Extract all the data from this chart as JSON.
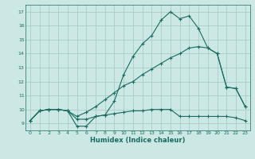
{
  "xlabel": "Humidex (Indice chaleur)",
  "ylabel": "",
  "xlim": [
    -0.5,
    23.5
  ],
  "ylim": [
    8.5,
    17.5
  ],
  "xticks": [
    0,
    1,
    2,
    3,
    4,
    5,
    6,
    7,
    8,
    9,
    10,
    11,
    12,
    13,
    14,
    15,
    16,
    17,
    18,
    19,
    20,
    21,
    22,
    23
  ],
  "yticks": [
    9,
    10,
    11,
    12,
    13,
    14,
    15,
    16,
    17
  ],
  "bg_color": "#cce8e4",
  "grid_color": "#aaccc8",
  "line_color": "#1a6b60",
  "line1_y": [
    9.2,
    9.9,
    10.0,
    10.0,
    9.9,
    8.8,
    8.8,
    9.5,
    9.6,
    10.6,
    12.5,
    13.8,
    14.7,
    15.3,
    16.4,
    17.0,
    16.5,
    16.7,
    15.8,
    14.4,
    14.0,
    11.6,
    11.5,
    10.2
  ],
  "line2_y": [
    9.2,
    9.9,
    10.0,
    10.0,
    9.9,
    9.5,
    9.8,
    10.2,
    10.7,
    11.2,
    11.7,
    12.0,
    12.5,
    12.9,
    13.3,
    13.7,
    14.0,
    14.4,
    14.5,
    14.4,
    14.0,
    11.6,
    11.5,
    10.2
  ],
  "line3_y": [
    9.2,
    9.9,
    10.0,
    10.0,
    9.9,
    9.3,
    9.3,
    9.5,
    9.6,
    9.7,
    9.8,
    9.9,
    9.9,
    10.0,
    10.0,
    10.0,
    9.5,
    9.5,
    9.5,
    9.5,
    9.5,
    9.5,
    9.4,
    9.2
  ],
  "xlabel_fontsize": 6,
  "tick_fontsize": 4.5,
  "lw": 0.8,
  "ms": 3.0
}
